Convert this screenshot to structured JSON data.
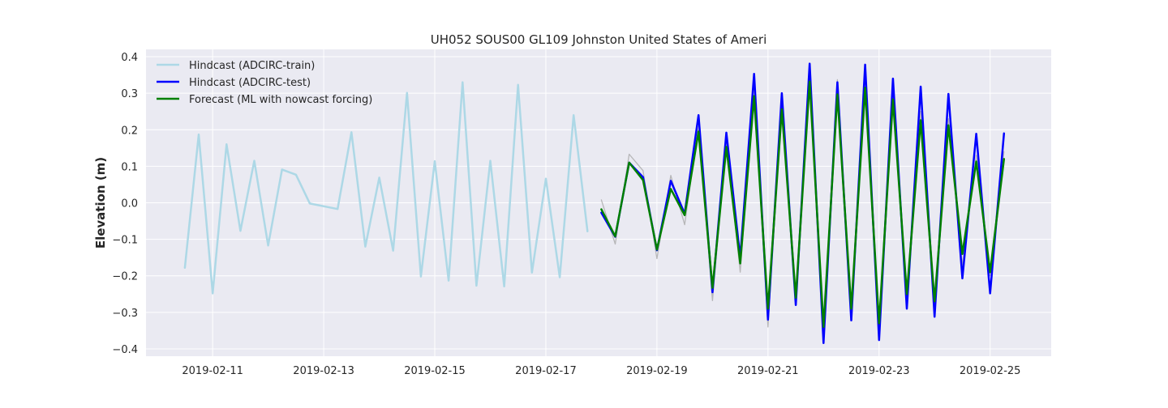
{
  "chart_data": {
    "type": "line",
    "title": "UH052 SOUS00 GL109 Johnston United States of Ameri",
    "xlabel": "",
    "ylabel": "Elevation (m)",
    "xlim": [
      "2019-02-09 19:12",
      "2019-02-26 02:24"
    ],
    "ylim": [
      -0.42,
      0.42
    ],
    "x_ticks": [
      "2019-02-11",
      "2019-02-13",
      "2019-02-15",
      "2019-02-17",
      "2019-02-19",
      "2019-02-21",
      "2019-02-23",
      "2019-02-25"
    ],
    "y_ticks": [
      -0.4,
      -0.3,
      -0.2,
      -0.1,
      0.0,
      0.1,
      0.2,
      0.3,
      0.4
    ],
    "y_tick_labels": [
      "−0.4",
      "−0.3",
      "−0.2",
      "−0.1",
      "0.0",
      "0.1",
      "0.2",
      "0.3",
      "0.4"
    ],
    "grid": true,
    "legend_position": "top-left",
    "background": "#eaeaf2",
    "series": [
      {
        "name": "Hindcast (ADCIRC-train)",
        "color": "#add8e6",
        "x": [
          "2019-02-10 12:00",
          "2019-02-10 18:00",
          "2019-02-11 00:00",
          "2019-02-11 06:00",
          "2019-02-11 12:00",
          "2019-02-11 18:00",
          "2019-02-12 00:00",
          "2019-02-12 06:00",
          "2019-02-12 12:00",
          "2019-02-12 18:00",
          "2019-02-13 06:00",
          "2019-02-13 12:00",
          "2019-02-13 18:00",
          "2019-02-14 00:00",
          "2019-02-14 06:00",
          "2019-02-14 12:00",
          "2019-02-14 18:00",
          "2019-02-15 00:00",
          "2019-02-15 06:00",
          "2019-02-15 12:00",
          "2019-02-15 18:00",
          "2019-02-16 00:00",
          "2019-02-16 06:00",
          "2019-02-16 12:00",
          "2019-02-16 18:00",
          "2019-02-17 00:00",
          "2019-02-17 06:00",
          "2019-02-17 12:00",
          "2019-02-17 18:00"
        ],
        "values": [
          -0.178,
          0.187,
          -0.248,
          0.16,
          -0.077,
          0.115,
          -0.117,
          0.091,
          0.077,
          -0.002,
          -0.017,
          0.193,
          -0.12,
          0.069,
          -0.131,
          0.301,
          -0.202,
          0.114,
          -0.213,
          0.33,
          -0.227,
          0.115,
          -0.229,
          0.323,
          -0.191,
          0.066,
          -0.204,
          0.24,
          -0.078
        ]
      },
      {
        "name": "Hindcast (ADCIRC-test)",
        "color": "#0000ff",
        "x": [
          "2019-02-18 00:00",
          "2019-02-18 06:00",
          "2019-02-18 12:00",
          "2019-02-18 18:00",
          "2019-02-19 00:00",
          "2019-02-19 06:00",
          "2019-02-19 12:00",
          "2019-02-19 18:00",
          "2019-02-20 00:00",
          "2019-02-20 06:00",
          "2019-02-20 12:00",
          "2019-02-20 18:00",
          "2019-02-21 00:00",
          "2019-02-21 06:00",
          "2019-02-21 12:00",
          "2019-02-21 18:00",
          "2019-02-22 00:00",
          "2019-02-22 06:00",
          "2019-02-22 12:00",
          "2019-02-22 18:00",
          "2019-02-23 00:00",
          "2019-02-23 06:00",
          "2019-02-23 12:00",
          "2019-02-23 18:00",
          "2019-02-24 00:00",
          "2019-02-24 06:00",
          "2019-02-24 12:00",
          "2019-02-24 18:00",
          "2019-02-25 00:00",
          "2019-02-25 06:00"
        ],
        "values": [
          -0.027,
          -0.093,
          0.11,
          0.07,
          -0.13,
          0.06,
          -0.03,
          0.24,
          -0.245,
          0.192,
          -0.15,
          0.353,
          -0.32,
          0.3,
          -0.28,
          0.381,
          -0.384,
          0.33,
          -0.322,
          0.378,
          -0.376,
          0.34,
          -0.29,
          0.318,
          -0.312,
          0.298,
          -0.207,
          0.189,
          -0.248,
          0.19
        ]
      },
      {
        "name": "Forecast (ML with nowcast forcing)",
        "color": "#008000",
        "x": [
          "2019-02-18 00:00",
          "2019-02-18 06:00",
          "2019-02-18 12:00",
          "2019-02-18 18:00",
          "2019-02-19 00:00",
          "2019-02-19 06:00",
          "2019-02-19 12:00",
          "2019-02-19 18:00",
          "2019-02-20 00:00",
          "2019-02-20 06:00",
          "2019-02-20 12:00",
          "2019-02-20 18:00",
          "2019-02-21 00:00",
          "2019-02-21 06:00",
          "2019-02-21 12:00",
          "2019-02-21 18:00",
          "2019-02-22 00:00",
          "2019-02-22 06:00",
          "2019-02-22 12:00",
          "2019-02-22 18:00",
          "2019-02-23 00:00",
          "2019-02-23 06:00",
          "2019-02-23 12:00",
          "2019-02-23 18:00",
          "2019-02-24 00:00",
          "2019-02-24 06:00",
          "2019-02-24 12:00",
          "2019-02-24 18:00",
          "2019-02-25 00:00",
          "2019-02-25 06:00"
        ],
        "values": [
          -0.018,
          -0.092,
          0.11,
          0.062,
          -0.128,
          0.038,
          -0.034,
          0.195,
          -0.233,
          0.153,
          -0.166,
          0.292,
          -0.29,
          0.256,
          -0.26,
          0.332,
          -0.34,
          0.297,
          -0.29,
          0.315,
          -0.33,
          0.283,
          -0.25,
          0.226,
          -0.27,
          0.212,
          -0.14,
          0.113,
          -0.19,
          0.12
        ]
      },
      {
        "name": "",
        "color": "#a9a9a9",
        "x": [
          "2019-02-18 00:00",
          "2019-02-18 06:00",
          "2019-02-18 12:00",
          "2019-02-18 18:00",
          "2019-02-19 00:00",
          "2019-02-19 06:00",
          "2019-02-19 12:00",
          "2019-02-19 18:00",
          "2019-02-20 00:00",
          "2019-02-20 06:00",
          "2019-02-20 12:00",
          "2019-02-20 18:00",
          "2019-02-21 00:00",
          "2019-02-21 06:00",
          "2019-02-21 12:00",
          "2019-02-21 18:00",
          "2019-02-22 00:00",
          "2019-02-22 06:00",
          "2019-02-22 12:00",
          "2019-02-22 18:00",
          "2019-02-23 00:00",
          "2019-02-23 06:00",
          "2019-02-23 12:00",
          "2019-02-23 18:00",
          "2019-02-24 00:00",
          "2019-02-24 06:00",
          "2019-02-24 12:00",
          "2019-02-24 18:00",
          "2019-02-25 00:00",
          "2019-02-25 06:00"
        ],
        "values": [
          0.008,
          -0.113,
          0.133,
          0.088,
          -0.153,
          0.075,
          -0.06,
          0.21,
          -0.268,
          0.17,
          -0.19,
          0.31,
          -0.34,
          0.27,
          -0.272,
          0.35,
          -0.35,
          0.337,
          -0.302,
          0.34,
          -0.35,
          0.3,
          -0.28,
          0.25,
          -0.3,
          0.23,
          -0.17,
          0.13,
          -0.2,
          0.14
        ]
      }
    ]
  }
}
